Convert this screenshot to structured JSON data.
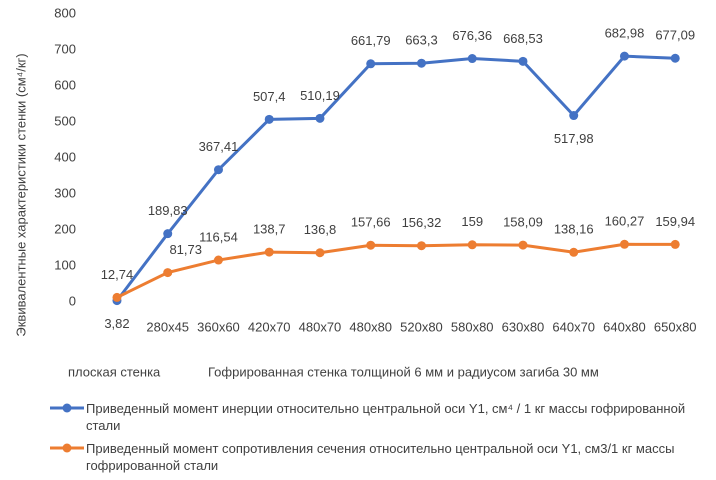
{
  "chart_data": {
    "type": "line",
    "y_label": "Эквивалентные характеристики стенки (см⁴/кг)",
    "categories": [
      null,
      "280x45",
      "360x60",
      "420x70",
      "480x70",
      "480x80",
      "520x80",
      "580x80",
      "630x80",
      "640x70",
      "640x80",
      "650x80"
    ],
    "group_labels": [
      "плоская стенка",
      "Гофрированная стенка толщиной 6 мм и радиусом загиба 30 мм"
    ],
    "series": [
      {
        "name": "Приведенный момент инерции относительно центральной оси Y1, см⁴ / 1 кг массы гофрированной стали",
        "color": "#4472c4",
        "values": [
          3.82,
          189.83,
          367.41,
          507.4,
          510.19,
          661.79,
          663.3,
          676.36,
          668.53,
          517.98,
          682.98,
          677.09
        ],
        "value_labels": [
          "3,82",
          "189,83",
          "367,41",
          "507,4",
          "510,19",
          "661,79",
          "663,3",
          "676,36",
          "668,53",
          "517,98",
          "682,98",
          "677,09"
        ]
      },
      {
        "name": "Приведенный момент сопротивления сечения относительно центральной оси Y1, см3/1 кг массы гофрированной стали",
        "color": "#ed7d31",
        "values": [
          12.74,
          81.73,
          116.54,
          138.7,
          136.8,
          157.66,
          156.32,
          159,
          158.09,
          138.16,
          160.27,
          159.94
        ],
        "value_labels": [
          "12,74",
          "81,73",
          "116,54",
          "138,7",
          "136,8",
          "157,66",
          "156,32",
          "159",
          "158,09",
          "138,16",
          "160,27",
          "159,94"
        ]
      }
    ],
    "ylim": [
      0,
      800
    ],
    "yticks": [
      0,
      100,
      200,
      300,
      400,
      500,
      600,
      700,
      800
    ],
    "grid": false
  }
}
